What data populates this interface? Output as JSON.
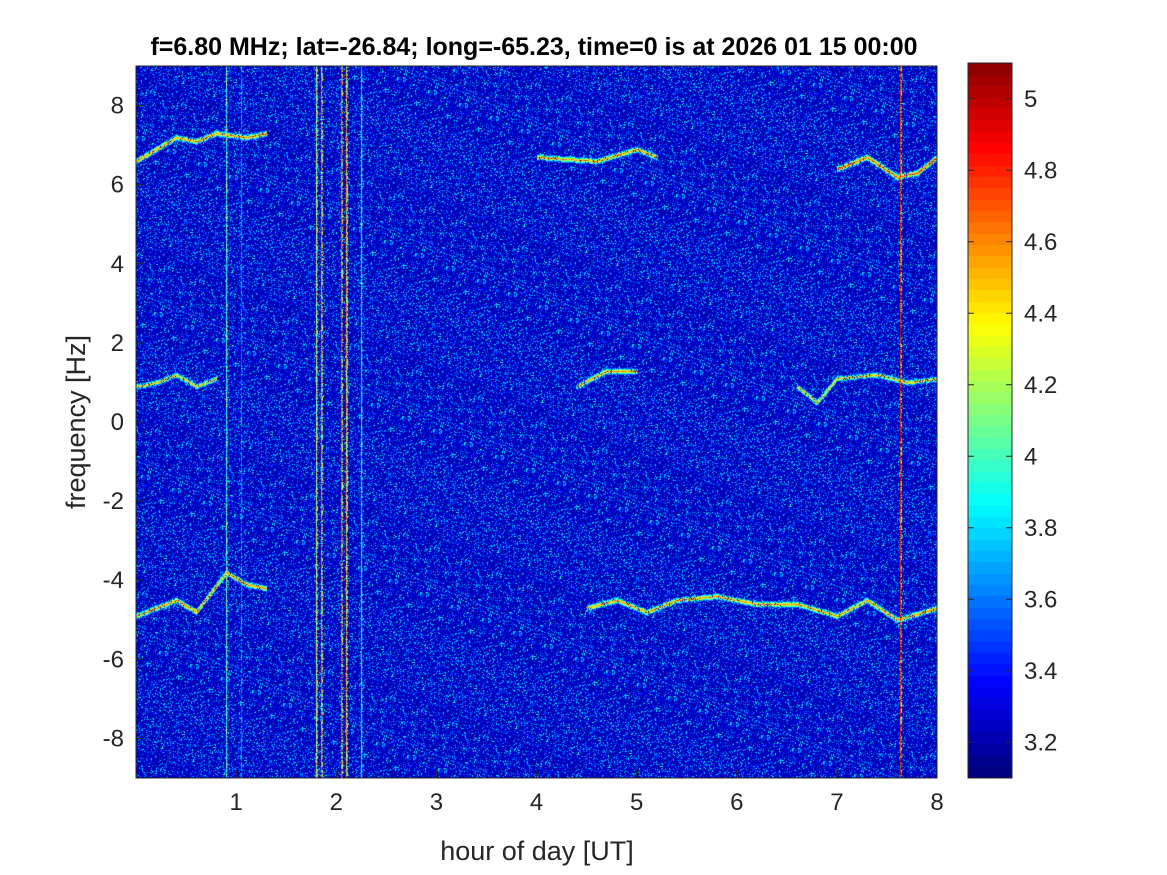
{
  "chart_data": {
    "type": "heatmap",
    "title": "f=6.80 MHz;  lat=-26.84; long=-65.23, time=0 is at 2026 01 15 00:00",
    "xlabel": "hour of day [UT]",
    "ylabel": "frequency [Hz]",
    "xlim": [
      0,
      8
    ],
    "ylim": [
      -9,
      9
    ],
    "xticks": [
      1,
      2,
      3,
      4,
      5,
      6,
      7,
      8
    ],
    "xtick_labels": [
      "1",
      "2",
      "3",
      "4",
      "5",
      "6",
      "7",
      "8"
    ],
    "yticks": [
      8,
      6,
      4,
      2,
      0,
      -2,
      -4,
      -6,
      -8
    ],
    "ytick_labels": [
      "8",
      "6",
      "4",
      "2",
      "0",
      "-2",
      "-4",
      "-6",
      "-8"
    ],
    "colormap": "jet",
    "clim": [
      3.1,
      5.1
    ],
    "colorbar_ticks": [
      5,
      4.8,
      4.6,
      4.4,
      4.2,
      4,
      3.8,
      3.6,
      3.4,
      3.2
    ],
    "colorbar_tick_labels": [
      "5",
      "4.8",
      "4.6",
      "4.4",
      "4.2",
      "4",
      "3.8",
      "3.6",
      "3.4",
      "3.2"
    ],
    "background_level": 3.2,
    "traces": [
      {
        "desc": "upper Doppler trace",
        "points": [
          [
            0.0,
            6.6
          ],
          [
            0.2,
            6.9
          ],
          [
            0.4,
            7.2
          ],
          [
            0.6,
            7.1
          ],
          [
            0.8,
            7.3
          ],
          [
            1.1,
            7.2
          ],
          [
            1.3,
            7.3
          ]
        ],
        "level": 4.6
      },
      {
        "desc": "upper Doppler trace",
        "points": [
          [
            4.0,
            6.7
          ],
          [
            4.6,
            6.6
          ],
          [
            5.0,
            6.9
          ],
          [
            5.2,
            6.7
          ]
        ],
        "level": 4.6
      },
      {
        "desc": "upper Doppler trace",
        "points": [
          [
            7.0,
            6.4
          ],
          [
            7.3,
            6.7
          ],
          [
            7.6,
            6.2
          ],
          [
            7.8,
            6.3
          ],
          [
            8.0,
            6.7
          ]
        ],
        "level": 4.7
      },
      {
        "desc": "middle Doppler trace",
        "points": [
          [
            0.0,
            0.9
          ],
          [
            0.2,
            1.0
          ],
          [
            0.4,
            1.2
          ],
          [
            0.6,
            0.9
          ],
          [
            0.8,
            1.1
          ]
        ],
        "level": 4.5
      },
      {
        "desc": "middle Doppler trace",
        "points": [
          [
            4.4,
            0.9
          ],
          [
            4.7,
            1.3
          ],
          [
            5.0,
            1.3
          ]
        ],
        "level": 4.6
      },
      {
        "desc": "middle Doppler trace",
        "points": [
          [
            6.6,
            0.9
          ],
          [
            6.8,
            0.5
          ],
          [
            7.0,
            1.1
          ],
          [
            7.4,
            1.2
          ],
          [
            7.7,
            1.0
          ],
          [
            8.0,
            1.1
          ]
        ],
        "level": 4.5
      },
      {
        "desc": "lower Doppler trace",
        "points": [
          [
            0.0,
            -4.9
          ],
          [
            0.2,
            -4.7
          ],
          [
            0.4,
            -4.5
          ],
          [
            0.6,
            -4.8
          ],
          [
            0.9,
            -3.8
          ],
          [
            1.1,
            -4.1
          ],
          [
            1.3,
            -4.2
          ]
        ],
        "level": 4.6
      },
      {
        "desc": "lower Doppler trace",
        "points": [
          [
            4.5,
            -4.7
          ],
          [
            4.8,
            -4.5
          ],
          [
            5.1,
            -4.8
          ],
          [
            5.4,
            -4.5
          ],
          [
            5.8,
            -4.4
          ],
          [
            6.2,
            -4.6
          ],
          [
            6.6,
            -4.6
          ],
          [
            7.0,
            -4.9
          ],
          [
            7.3,
            -4.5
          ],
          [
            7.6,
            -5.0
          ],
          [
            8.0,
            -4.7
          ]
        ],
        "level": 4.6
      }
    ],
    "vertical_events": [
      {
        "x": 0.9,
        "level": 4.3
      },
      {
        "x": 1.05,
        "level": 3.9
      },
      {
        "x": 1.8,
        "level": 4.6
      },
      {
        "x": 1.85,
        "level": 4.9
      },
      {
        "x": 2.05,
        "level": 5.0
      },
      {
        "x": 2.1,
        "level": 4.8
      },
      {
        "x": 2.25,
        "level": 4.2
      },
      {
        "x": 7.63,
        "level": 5.1
      }
    ]
  }
}
